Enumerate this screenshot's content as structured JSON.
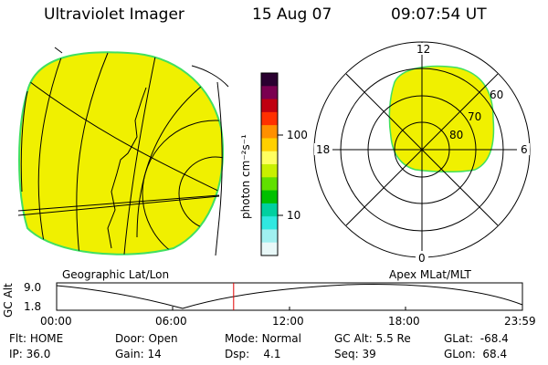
{
  "header": {
    "title": "Ultraviolet Imager",
    "date": "15 Aug 07",
    "time": "09:07:54 UT"
  },
  "colorbar": {
    "unit_label": "photon cm⁻²s⁻¹",
    "ticks": [
      "100",
      "10"
    ],
    "stops": [
      "#2a0030",
      "#7a0050",
      "#c00010",
      "#ff3000",
      "#ff9000",
      "#ffd000",
      "#ffff60",
      "#c8f000",
      "#60e000",
      "#00c000",
      "#00d0a0",
      "#30e8e0",
      "#a0f0f0",
      "#e8f8f8"
    ]
  },
  "left_map": {
    "caption": "Geographic Lat/Lon",
    "fill_color": "#f0f000",
    "edge_color": "#40e060"
  },
  "right_map": {
    "caption": "Apex MLat/MLT",
    "mlt_labels": [
      "12",
      "18",
      "6",
      "0"
    ],
    "mlat_labels": [
      "60",
      "70",
      "80"
    ],
    "fill_color": "#f0f000"
  },
  "altitude_strip": {
    "axis_label": "GC Alt",
    "y_ticks": [
      "9.0",
      "1.8"
    ],
    "x_ticks": [
      "00:00",
      "06:00",
      "12:00",
      "18:00",
      "23:59"
    ],
    "current_time_fraction": 0.38,
    "marker_color": "#e00000"
  },
  "status": {
    "row1": [
      {
        "label": "Flt:",
        "value": "HOME"
      },
      {
        "label": "Door:",
        "value": "Open"
      },
      {
        "label": "Mode:",
        "value": "Normal"
      },
      {
        "label": "GC Alt:",
        "value": "5.5 Re"
      },
      {
        "label": "GLat:",
        "value": "-68.4"
      }
    ],
    "row2": [
      {
        "label": "IP:",
        "value": "36.0"
      },
      {
        "label": "Gain:",
        "value": "14"
      },
      {
        "label": "Dsp:",
        "value": "4.1"
      },
      {
        "label": "Seq:",
        "value": "39"
      },
      {
        "label": "GLon:",
        "value": "68.4"
      }
    ]
  }
}
